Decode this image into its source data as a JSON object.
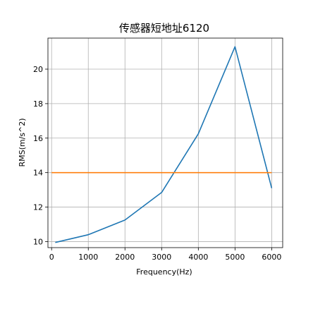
{
  "chart_data": {
    "type": "line",
    "title": "传感器短地址6120",
    "xlabel": "Frequency(Hz)",
    "ylabel": "RMS(m/s^2)",
    "xlim": [
      -100,
      6300
    ],
    "ylim": [
      9.65,
      21.8
    ],
    "xticks": [
      0,
      1000,
      2000,
      3000,
      4000,
      5000,
      6000
    ],
    "yticks": [
      10,
      12,
      14,
      16,
      18,
      20
    ],
    "grid": true,
    "series": [
      {
        "color": "#1f77b4",
        "x": [
          100,
          1000,
          2000,
          3000,
          4000,
          5000,
          6000
        ],
        "y": [
          9.95,
          10.4,
          11.25,
          12.85,
          16.25,
          21.3,
          13.1
        ]
      },
      {
        "color": "#ff7f0e",
        "x": [
          0,
          6000
        ],
        "y": [
          14.0,
          14.0
        ]
      }
    ]
  }
}
